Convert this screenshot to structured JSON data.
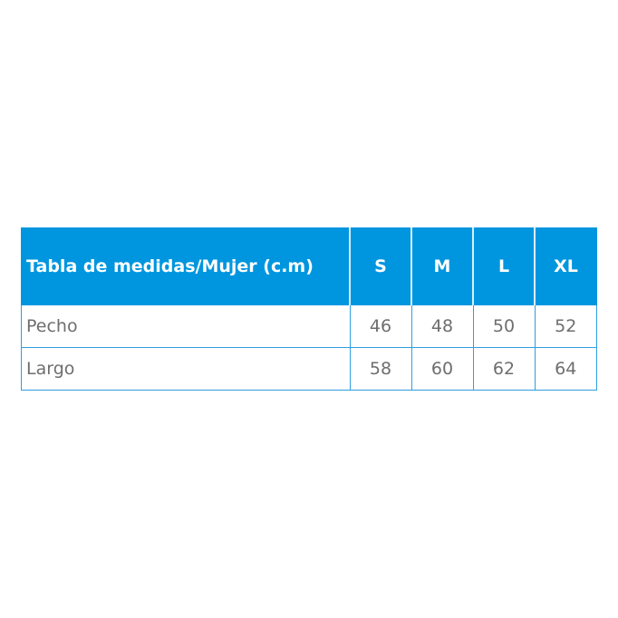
{
  "table": {
    "header": [
      "Tabla de medidas/Mujer (c.m)",
      "S",
      "M",
      "L",
      "XL"
    ],
    "rows": [
      [
        "Pecho",
        "46",
        "48",
        "50",
        "52"
      ],
      [
        "Largo",
        "58",
        "60",
        "62",
        "64"
      ]
    ]
  },
  "colors": {
    "header_bg": "#0096df",
    "border": "#2f9ee0",
    "text": "#6e6e6e"
  }
}
